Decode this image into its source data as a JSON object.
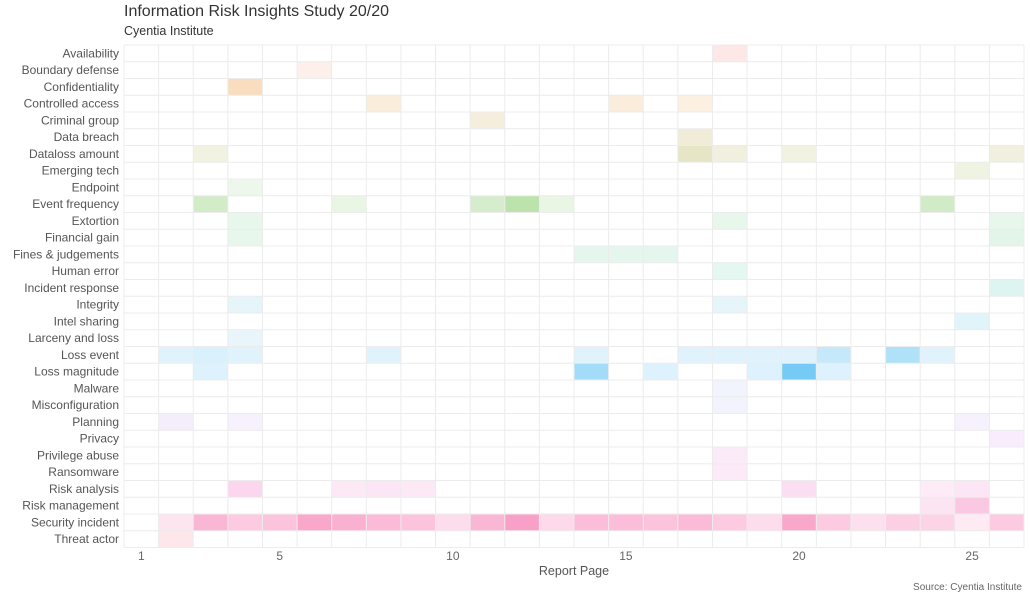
{
  "title": "Information Risk Insights Study 20/20",
  "subtitle": "Cyentia Institute",
  "source": "Source: Cyentia Institute",
  "chart_data": {
    "type": "heatmap",
    "xlabel": "Report Page",
    "xlim": [
      1,
      26
    ],
    "xticks": [
      1,
      5,
      10,
      15,
      20,
      25
    ],
    "categories": [
      "Availability",
      "Boundary defense",
      "Confidentiality",
      "Controlled access",
      "Criminal group",
      "Data breach",
      "Dataloss amount",
      "Emerging tech",
      "Endpoint",
      "Event frequency",
      "Extortion",
      "Financial gain",
      "Fines & judgements",
      "Human error",
      "Incident response",
      "Integrity",
      "Intel sharing",
      "Larceny and loss",
      "Loss event",
      "Loss magnitude",
      "Malware",
      "Misconfiguration",
      "Planning",
      "Privacy",
      "Privilege abuse",
      "Ransomware",
      "Risk analysis",
      "Risk management",
      "Security incident",
      "Threat actor"
    ],
    "row_colors": [
      "#f25c5c",
      "#f0845a",
      "#ee9d45",
      "#eca64e",
      "#d8b25f",
      "#c9b461",
      "#b8b65b",
      "#a8c060",
      "#8fc778",
      "#6cc04a",
      "#5cc681",
      "#5cc681",
      "#52c48f",
      "#4cc99a",
      "#42c3b3",
      "#4fbfe0",
      "#4fbfe0",
      "#43b9ea",
      "#2eb0f0",
      "#1aa8f0",
      "#8b9bf0",
      "#9a9ef0",
      "#b78ee8",
      "#d97fe8",
      "#e57ad8",
      "#ea72d0",
      "#f06ac2",
      "#f361b0",
      "#f4529a",
      "#f2607a"
    ],
    "cells": [
      [
        18,
        0,
        0.15
      ],
      [
        6,
        1,
        0.13
      ],
      [
        4,
        2,
        0.35
      ],
      [
        8,
        3,
        0.2
      ],
      [
        15,
        3,
        0.2
      ],
      [
        17,
        3,
        0.17
      ],
      [
        11,
        4,
        0.22
      ],
      [
        17,
        5,
        0.25
      ],
      [
        3,
        6,
        0.18
      ],
      [
        17,
        6,
        0.35
      ],
      [
        18,
        6,
        0.2
      ],
      [
        20,
        6,
        0.18
      ],
      [
        26,
        6,
        0.2
      ],
      [
        25,
        7,
        0.18
      ],
      [
        4,
        8,
        0.15
      ],
      [
        3,
        9,
        0.3
      ],
      [
        7,
        9,
        0.15
      ],
      [
        11,
        9,
        0.28
      ],
      [
        12,
        9,
        0.45
      ],
      [
        13,
        9,
        0.15
      ],
      [
        24,
        9,
        0.32
      ],
      [
        4,
        10,
        0.15
      ],
      [
        18,
        10,
        0.15
      ],
      [
        26,
        10,
        0.15
      ],
      [
        4,
        11,
        0.15
      ],
      [
        26,
        11,
        0.18
      ],
      [
        14,
        12,
        0.15
      ],
      [
        15,
        12,
        0.15
      ],
      [
        16,
        12,
        0.15
      ],
      [
        18,
        13,
        0.15
      ],
      [
        26,
        14,
        0.18
      ],
      [
        4,
        15,
        0.15
      ],
      [
        18,
        15,
        0.15
      ],
      [
        25,
        16,
        0.17
      ],
      [
        4,
        17,
        0.12
      ],
      [
        2,
        18,
        0.15
      ],
      [
        3,
        18,
        0.18
      ],
      [
        4,
        18,
        0.15
      ],
      [
        8,
        18,
        0.15
      ],
      [
        14,
        18,
        0.15
      ],
      [
        17,
        18,
        0.15
      ],
      [
        18,
        18,
        0.15
      ],
      [
        19,
        18,
        0.15
      ],
      [
        20,
        18,
        0.15
      ],
      [
        21,
        18,
        0.28
      ],
      [
        23,
        18,
        0.38
      ],
      [
        24,
        18,
        0.15
      ],
      [
        3,
        19,
        0.15
      ],
      [
        14,
        19,
        0.4
      ],
      [
        16,
        19,
        0.15
      ],
      [
        19,
        19,
        0.15
      ],
      [
        20,
        19,
        0.6
      ],
      [
        21,
        19,
        0.15
      ],
      [
        18,
        20,
        0.12
      ],
      [
        18,
        21,
        0.12
      ],
      [
        2,
        22,
        0.15
      ],
      [
        4,
        22,
        0.12
      ],
      [
        25,
        22,
        0.12
      ],
      [
        26,
        23,
        0.15
      ],
      [
        18,
        24,
        0.15
      ],
      [
        18,
        25,
        0.15
      ],
      [
        4,
        26,
        0.28
      ],
      [
        7,
        26,
        0.15
      ],
      [
        8,
        26,
        0.17
      ],
      [
        9,
        26,
        0.15
      ],
      [
        20,
        26,
        0.22
      ],
      [
        24,
        26,
        0.13
      ],
      [
        25,
        26,
        0.17
      ],
      [
        24,
        27,
        0.17
      ],
      [
        25,
        27,
        0.35
      ],
      [
        2,
        28,
        0.15
      ],
      [
        3,
        28,
        0.42
      ],
      [
        4,
        28,
        0.3
      ],
      [
        5,
        28,
        0.35
      ],
      [
        6,
        28,
        0.5
      ],
      [
        7,
        28,
        0.45
      ],
      [
        8,
        28,
        0.4
      ],
      [
        9,
        28,
        0.35
      ],
      [
        10,
        28,
        0.2
      ],
      [
        11,
        28,
        0.42
      ],
      [
        12,
        28,
        0.55
      ],
      [
        13,
        28,
        0.22
      ],
      [
        14,
        28,
        0.38
      ],
      [
        15,
        28,
        0.38
      ],
      [
        16,
        28,
        0.35
      ],
      [
        17,
        28,
        0.4
      ],
      [
        18,
        28,
        0.3
      ],
      [
        19,
        28,
        0.2
      ],
      [
        20,
        28,
        0.5
      ],
      [
        21,
        28,
        0.3
      ],
      [
        22,
        28,
        0.18
      ],
      [
        23,
        28,
        0.28
      ],
      [
        24,
        28,
        0.25
      ],
      [
        25,
        28,
        0.12
      ],
      [
        26,
        28,
        0.3
      ],
      [
        2,
        29,
        0.15
      ]
    ]
  }
}
